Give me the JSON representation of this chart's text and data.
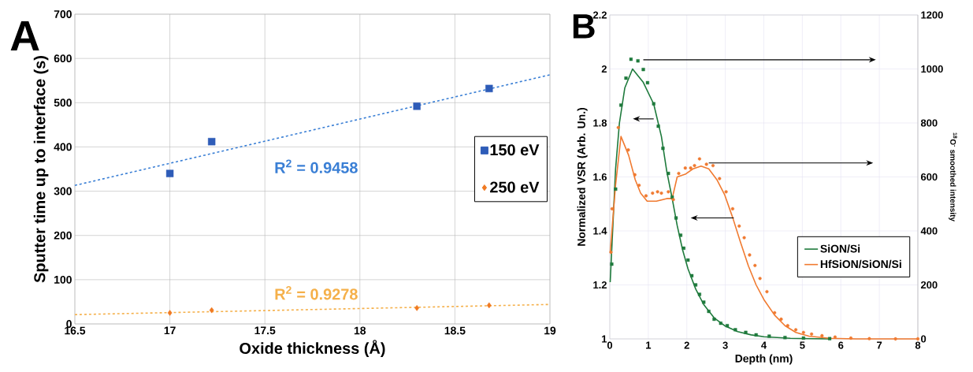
{
  "chart_data": [
    {
      "type": "scatter",
      "title": "A",
      "xlabel": "Oxide thickness (Å)",
      "ylabel": "Sputter time up to interface (s)",
      "xlim": [
        16.5,
        19
      ],
      "xticks": [
        16.5,
        17,
        17.5,
        18,
        18.5,
        19
      ],
      "ylim": [
        0,
        700
      ],
      "yticks": [
        0,
        100,
        200,
        300,
        400,
        500,
        600,
        700
      ],
      "grid": true,
      "legend": "right",
      "series": [
        {
          "name": "150 eV",
          "color": "#2e5cb8",
          "marker": "square",
          "x": [
            17,
            17.22,
            18.3,
            18.68
          ],
          "values": [
            340,
            412,
            492,
            532
          ]
        },
        {
          "name": "250 eV",
          "color": "#f07a22",
          "marker": "diamond",
          "x": [
            17,
            17.22,
            18.3,
            18.68
          ],
          "values": [
            25,
            31,
            36,
            42
          ]
        },
        {
          "type": "line",
          "color": "#3a7fd5",
          "line_style": "dashed",
          "x": [
            16.5,
            19
          ],
          "values": [
            313,
            563
          ]
        },
        {
          "type": "line",
          "color": "#f5b04a",
          "line_style": "dashed",
          "x": [
            16.5,
            19
          ],
          "values": [
            21,
            44
          ]
        }
      ],
      "annotations": [
        "R$^{2}$ = 0.9458",
        "R$^{2}$ = 0.9278"
      ]
    },
    {
      "type": "line",
      "title": "B",
      "xlabel": "Depth (nm)",
      "ylabel": "Normalized VSR (Arb. Un.)",
      "y2label": "$^{18}$O$^{-}$ smoothed intensity",
      "xlim": [
        0,
        8
      ],
      "xticks": [
        0,
        1,
        2,
        3,
        4,
        5,
        6,
        7,
        8
      ],
      "ylim": [
        1,
        2.2
      ],
      "yticks": [
        1,
        1.2,
        1.4,
        1.6,
        1.8,
        2,
        2.2
      ],
      "y2lim": [
        0,
        1200
      ],
      "y2ticks": [
        0,
        200,
        400,
        600,
        800,
        1000,
        1200
      ],
      "grid": true,
      "legend": "bottom right",
      "series": [
        {
          "name": "SiON/Si",
          "color": "#1e7a3c",
          "marker": "none",
          "x": [
            0.01,
            0.15,
            0.25,
            0.39,
            0.59,
            0.87,
            1.14,
            1.34,
            1.48,
            1.62,
            1.75,
            1.89,
            2.03,
            2.23,
            2.44,
            2.71,
            2.98,
            3.32,
            3.67,
            4.0,
            4.69,
            5.71
          ],
          "values": [
            1.21,
            1.63,
            1.8,
            1.93,
            2.0,
            1.95,
            1.87,
            1.75,
            1.62,
            1.52,
            1.42,
            1.33,
            1.26,
            1.185,
            1.127,
            1.078,
            1.049,
            1.027,
            1.015,
            1.008,
            1.002,
            1.0
          ]
        },
        {
          "name": "HfSiON/SiON/Si",
          "color": "#f07a30",
          "marker": "none",
          "x": [
            0.01,
            0.15,
            0.29,
            0.49,
            0.66,
            0.8,
            0.97,
            1.21,
            1.48,
            1.62,
            1.75,
            1.96,
            2.16,
            2.37,
            2.57,
            2.78,
            2.98,
            3.19,
            3.39,
            3.6,
            3.8,
            4.0,
            4.28,
            4.55,
            4.83,
            5.17,
            5.71,
            6.4,
            8
          ],
          "values": [
            1.32,
            1.57,
            1.75,
            1.68,
            1.59,
            1.54,
            1.51,
            1.51,
            1.52,
            1.52,
            1.6,
            1.61,
            1.63,
            1.64,
            1.63,
            1.59,
            1.535,
            1.45,
            1.36,
            1.27,
            1.2,
            1.146,
            1.088,
            1.049,
            1.024,
            1.01,
            1.002,
            1.0,
            1.0
          ]
        },
        {
          "type": "scatter",
          "axis": "y2",
          "color": "#1e7a3c",
          "marker": "square",
          "x": [
            0.05,
            0.15,
            0.29,
            0.42,
            0.55,
            0.73,
            0.87,
            0.98,
            1.14,
            1.26,
            1.38,
            1.52,
            1.62,
            1.72,
            1.84,
            1.92,
            2.03,
            2.13,
            2.23,
            2.33,
            2.44,
            2.57,
            2.71,
            2.88,
            3.05,
            3.26,
            3.53,
            3.8,
            4.14,
            4.55,
            5.03,
            5.71
          ],
          "values": [
            277,
            555,
            866,
            966,
            1036,
            1030,
            998,
            949,
            871,
            788,
            706,
            613,
            525,
            448,
            384,
            336,
            292,
            234,
            200,
            165,
            136,
            102,
            73,
            58,
            49,
            34,
            24,
            15,
            10,
            5,
            3,
            1
          ]
        },
        {
          "type": "scatter",
          "axis": "y2",
          "color": "#f07a30",
          "marker": "circle",
          "x": [
            0.03,
            0.06,
            0.22,
            0.48,
            0.65,
            0.76,
            0.94,
            1.11,
            1.24,
            1.34,
            1.52,
            1.65,
            1.79,
            1.96,
            2.1,
            2.2,
            2.33,
            2.51,
            2.68,
            2.85,
            3.02,
            3.19,
            3.36,
            3.49,
            3.63,
            3.77,
            3.9,
            4.08,
            4.28,
            4.45,
            4.62,
            4.83,
            5.03,
            5.24,
            5.51,
            5.85,
            6.26,
            6.74,
            7.42,
            8
          ],
          "values": [
            321,
            482,
            783,
            700,
            608,
            569,
            530,
            540,
            545,
            540,
            545,
            516,
            613,
            633,
            633,
            642,
            667,
            647,
            642,
            594,
            545,
            482,
            418,
            375,
            311,
            272,
            224,
            175,
            97,
            73,
            49,
            34,
            24,
            18,
            12,
            7,
            3,
            1,
            0,
            0
          ]
        }
      ]
    }
  ]
}
